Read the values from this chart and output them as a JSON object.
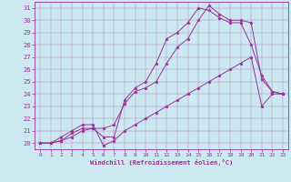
{
  "xlabel": "Windchill (Refroidissement éolien,°C)",
  "bg_color": "#cce8f0",
  "line_color": "#993399",
  "xlim": [
    -0.5,
    23.5
  ],
  "ylim": [
    19.5,
    31.5
  ],
  "yticks": [
    20,
    21,
    22,
    23,
    24,
    25,
    26,
    27,
    28,
    29,
    30,
    31
  ],
  "xticks": [
    0,
    1,
    2,
    3,
    4,
    5,
    6,
    7,
    8,
    9,
    10,
    11,
    12,
    13,
    14,
    15,
    16,
    17,
    18,
    19,
    20,
    21,
    22,
    23
  ],
  "series": [
    [
      20.0,
      20.0,
      20.2,
      20.8,
      21.2,
      21.2,
      20.5,
      20.5,
      23.5,
      24.5,
      25.0,
      26.5,
      28.5,
      29.0,
      29.8,
      31.0,
      30.8,
      30.2,
      29.8,
      29.8,
      28.0,
      25.5,
      24.2,
      24.0
    ],
    [
      20.0,
      20.0,
      20.2,
      20.5,
      21.0,
      21.2,
      21.2,
      21.5,
      23.2,
      24.2,
      24.5,
      25.0,
      26.5,
      27.8,
      28.5,
      30.0,
      31.2,
      30.5,
      30.0,
      30.0,
      29.8,
      25.2,
      24.2,
      24.0
    ],
    [
      20.0,
      20.0,
      20.5,
      21.0,
      21.5,
      21.5,
      19.8,
      20.2,
      21.0,
      21.5,
      22.0,
      22.5,
      23.0,
      23.5,
      24.0,
      24.5,
      25.0,
      25.5,
      26.0,
      26.5,
      27.0,
      23.0,
      24.0,
      24.0
    ]
  ]
}
